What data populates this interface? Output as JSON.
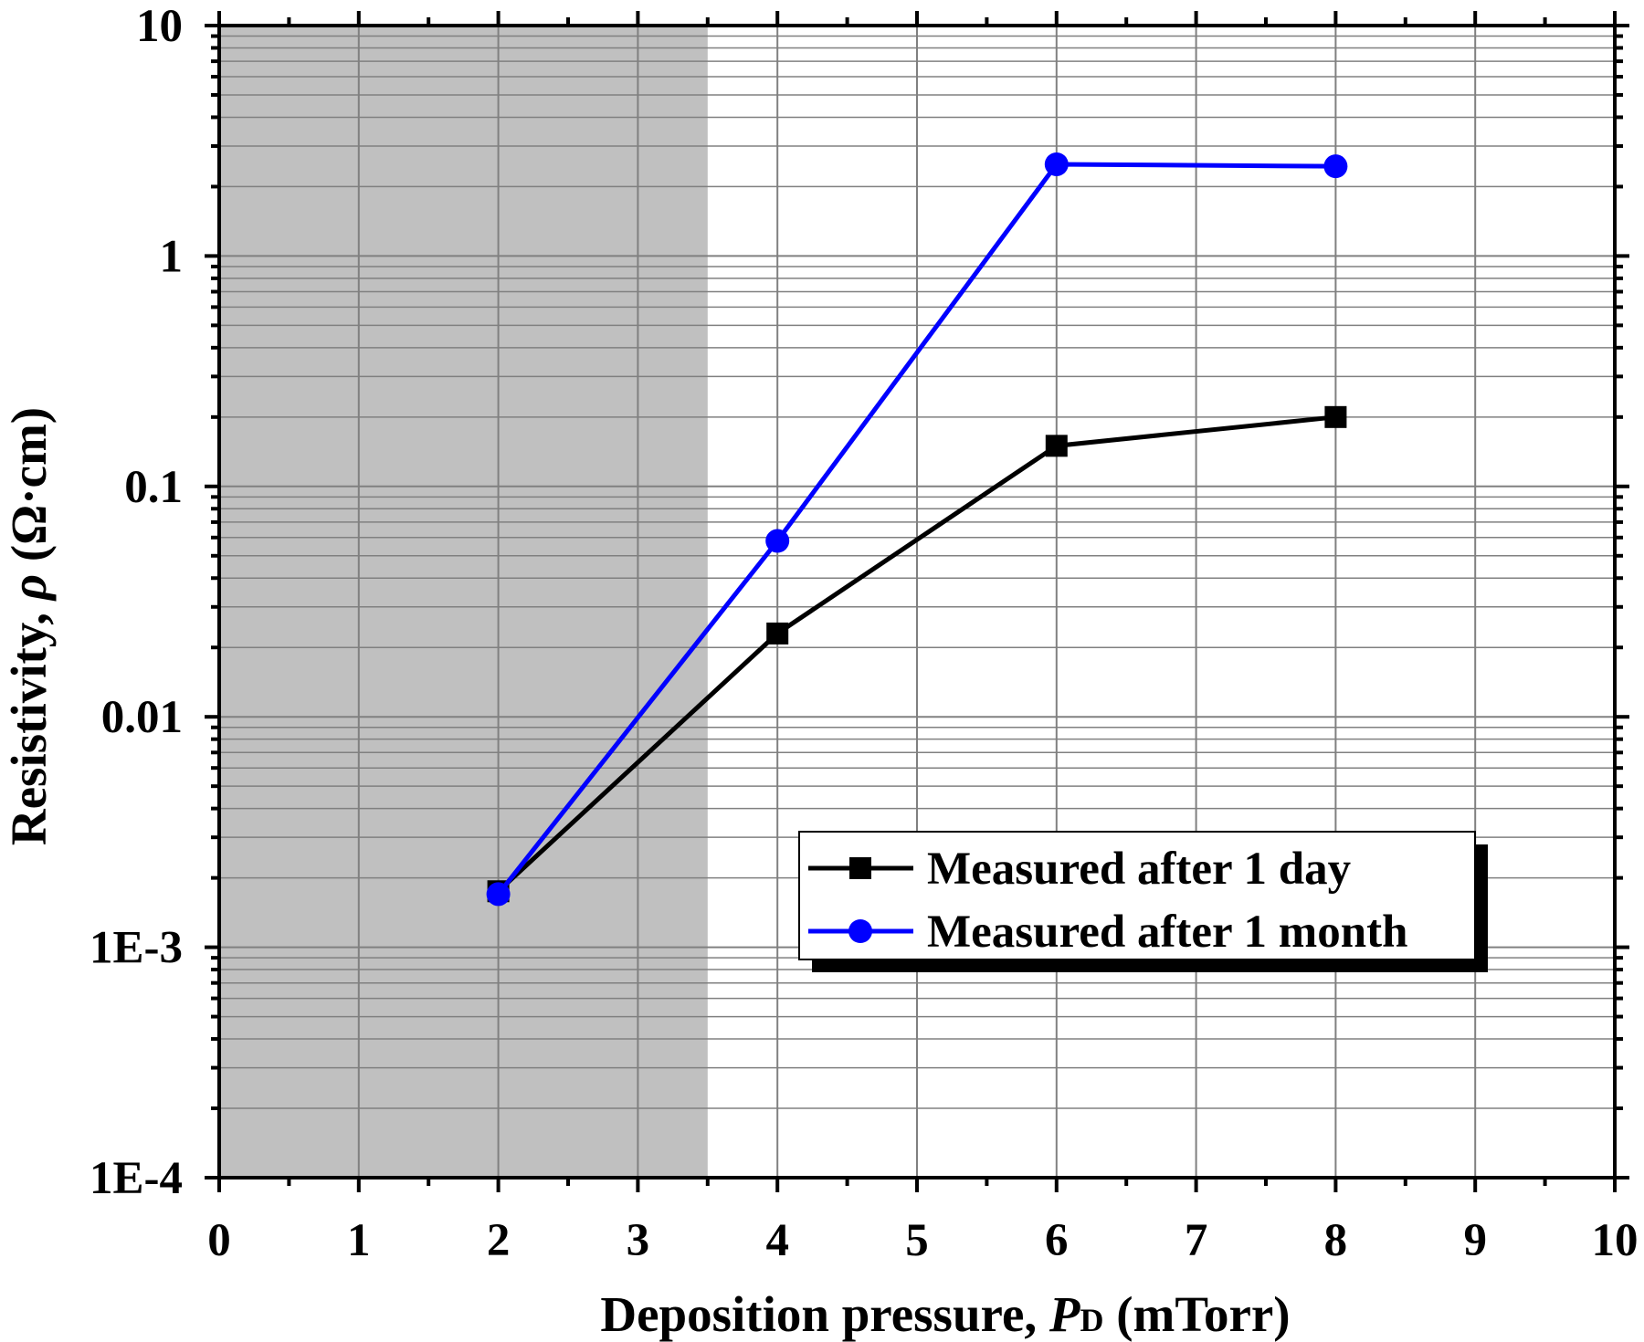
{
  "chart_data": {
    "type": "line",
    "title": "",
    "xlabel_main": "Deposition pressure, ",
    "xlabel_var": "P",
    "xlabel_sub": "D",
    "xlabel_unit": " (mTorr)",
    "ylabel_main": "Resistivity, ",
    "ylabel_var": "ρ",
    "ylabel_unit": " (Ω·cm)",
    "xlim": [
      0,
      10
    ],
    "ylim": [
      0.0001,
      10
    ],
    "yscale": "log",
    "grid": true,
    "x_ticks": [
      "0",
      "1",
      "2",
      "3",
      "4",
      "5",
      "6",
      "7",
      "8",
      "9",
      "10"
    ],
    "y_tick_values": [
      0.0001,
      0.001,
      0.01,
      0.1,
      1,
      10
    ],
    "y_ticks": [
      "1E-4",
      "1E-3",
      "0.01",
      "0.1",
      "1",
      "10"
    ],
    "shaded_region": {
      "x_from": 0,
      "x_to": 3.5,
      "color": "#c0c0c0"
    },
    "legend_position": "lower-right",
    "series": [
      {
        "name": "Measured after 1 day",
        "color": "#000000",
        "marker": "square",
        "x": [
          2,
          4,
          6,
          8
        ],
        "values": [
          0.00175,
          0.023,
          0.15,
          0.2
        ]
      },
      {
        "name": "Measured after 1 month",
        "color": "#0000ff",
        "marker": "circle",
        "x": [
          2,
          4,
          6,
          8
        ],
        "values": [
          0.0017,
          0.058,
          2.5,
          2.45
        ]
      }
    ]
  }
}
